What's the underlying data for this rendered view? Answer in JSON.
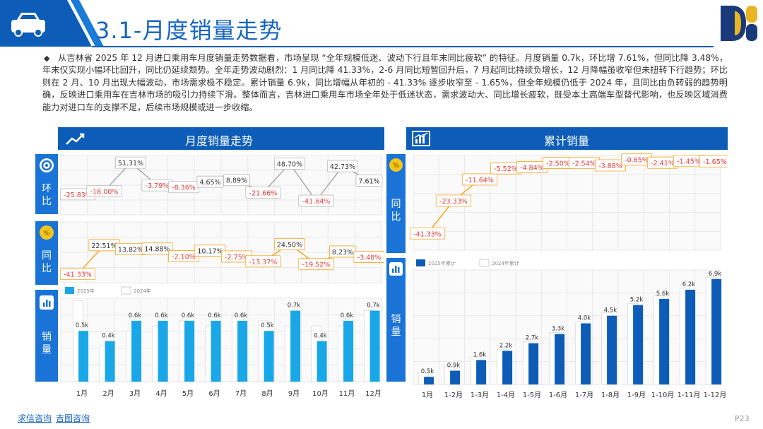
{
  "header": {
    "title": "3.1-月度销量走势",
    "logo_icon": "dcb-logo-icon",
    "car_icon": "car-icon"
  },
  "summary": "从吉林省 2025 年 12 月进口乘用车月度销量走势数据看，市场呈现 “全年规模低迷、波动下行且年末同比疲软” 的特征。月度销量 0.7k，环比增 7.61%，但同比降 3.48%，年末仅实现小幅环比回升，同比仍延续颓势。全年走势波动剧烈：1 月同比降 41.33%，2-6 月同比短暂回升后，7 月起同比持续负增长，12 月降幅虽收窄但未扭转下行趋势；环比则在 2 月、10 月出现大幅波动，市场需求极不稳定。累计销量 6.9k，同比增幅从年初的 - 41.33% 逐步收窄至 - 1.65%，但全年规模仍低于 2024 年，且同比由负转弱的趋势明确，反映进口乘用车在吉林市场的吸引力持续下滑。整体而言，吉林进口乘用车市场全年处于低迷状态，需求波动大、同比增长疲软，既受本土高端车型替代影响，也反映区域消费能力对进口车的支撑不足，后续市场规模或进一步收缩。",
  "left_panel": {
    "title": "月度销量走势",
    "side_labels": {
      "mom": "环比",
      "yoy": "同比",
      "sales": "销量"
    }
  },
  "right_panel": {
    "title": "累计销量",
    "side_labels": {
      "yoy": "同比",
      "sales": "销量"
    }
  },
  "footer": {
    "link1": "求信咨询",
    "link2": "吉图咨询",
    "page": "P23"
  },
  "colors": {
    "primary": "#0d5db8",
    "bar_2025": "#1aa7e8",
    "bar_cum": "#0d5db8",
    "orange": "#f5a623",
    "red": "#e53935"
  },
  "chart_data": [
    {
      "type": "line",
      "name": "monthly-mom",
      "categories": [
        "1月",
        "2月",
        "3月",
        "4月",
        "5月",
        "6月",
        "7月",
        "8月",
        "9月",
        "10月",
        "11月",
        "12月"
      ],
      "values": [
        -25.83,
        -18.0,
        51.31,
        -3.79,
        -8.36,
        4.65,
        8.89,
        -21.66,
        48.7,
        -41.64,
        42.73,
        7.61
      ],
      "labels": [
        "-25.83%",
        "-18.00%",
        "51.31%",
        "-3.79%",
        "-8.36%",
        "4.65%",
        "8.89%",
        "-21.66%",
        "48.70%",
        "-41.64%",
        "42.73%",
        "7.61%"
      ]
    },
    {
      "type": "line",
      "name": "monthly-yoy",
      "categories": [
        "1月",
        "2月",
        "3月",
        "4月",
        "5月",
        "6月",
        "7月",
        "8月",
        "9月",
        "10月",
        "11月",
        "12月"
      ],
      "values": [
        -41.33,
        22.51,
        13.82,
        14.88,
        -2.1,
        10.17,
        -2.75,
        -13.37,
        24.5,
        -19.52,
        8.23,
        -3.48
      ],
      "labels": [
        "-41.33%",
        "22.51%",
        "13.82%",
        "14.88%",
        "-2.10%",
        "10.17%",
        "-2.75%",
        "-13.37%",
        "24.50%",
        "-19.52%",
        "8.23%",
        "-3.48%"
      ]
    },
    {
      "type": "bar",
      "name": "monthly-sales",
      "categories": [
        "1月",
        "2月",
        "3月",
        "4月",
        "5月",
        "6月",
        "7月",
        "8月",
        "9月",
        "10月",
        "11月",
        "12月"
      ],
      "series": [
        {
          "name": "2025年",
          "values": [
            0.5,
            0.4,
            0.6,
            0.6,
            0.6,
            0.6,
            0.6,
            0.5,
            0.7,
            0.4,
            0.6,
            0.7
          ],
          "labels": [
            "0.5k",
            "0.4k",
            "0.6k",
            "0.6k",
            "0.6k",
            "0.6k",
            "0.6k",
            "0.5k",
            "0.7k",
            "0.4k",
            "0.6k",
            "0.7k"
          ]
        },
        {
          "name": "2024年",
          "values": [
            0.8,
            0.35,
            0.5,
            0.55,
            0.6,
            0.55,
            0.65,
            0.6,
            0.55,
            0.55,
            0.55,
            0.7
          ]
        }
      ]
    },
    {
      "type": "line",
      "name": "cumulative-yoy",
      "categories": [
        "1月",
        "1-2月",
        "1-3月",
        "1-4月",
        "1-5月",
        "1-6月",
        "1-7月",
        "1-8月",
        "1-9月",
        "1-10月",
        "1-11月",
        "1-12月"
      ],
      "values": [
        -41.33,
        -23.33,
        -11.64,
        -5.52,
        -4.84,
        -2.5,
        -2.54,
        -3.88,
        -0.65,
        -2.41,
        -1.45,
        -1.65
      ],
      "labels": [
        "-41.33%",
        "-23.33%",
        "-11.64%",
        "-5.52%",
        "-4.84%",
        "-2.50%",
        "-2.54%",
        "-3.88%",
        "-0.65%",
        "-2.41%",
        "-1.45%",
        "-1.65%"
      ]
    },
    {
      "type": "bar",
      "name": "cumulative-sales",
      "categories": [
        "1月",
        "1-2月",
        "1-3月",
        "1-4月",
        "1-5月",
        "1-6月",
        "1-7月",
        "1-8月",
        "1-9月",
        "1-10月",
        "1-11月",
        "1-12月"
      ],
      "series": [
        {
          "name": "2025年累计",
          "values": [
            0.5,
            0.9,
            1.6,
            2.2,
            2.7,
            3.3,
            4.0,
            4.5,
            5.2,
            5.6,
            6.2,
            6.9
          ],
          "labels": [
            "0.5k",
            "0.9k",
            "1.6k",
            "2.2k",
            "2.7k",
            "3.3k",
            "4.0k",
            "4.5k",
            "5.2k",
            "5.6k",
            "6.2k",
            "6.9k"
          ]
        },
        {
          "name": "2024年累计",
          "values": [
            0.8,
            1.2,
            1.8,
            2.3,
            2.8,
            3.4,
            4.1,
            4.7,
            5.3,
            5.8,
            6.3,
            7.0
          ]
        }
      ]
    }
  ]
}
